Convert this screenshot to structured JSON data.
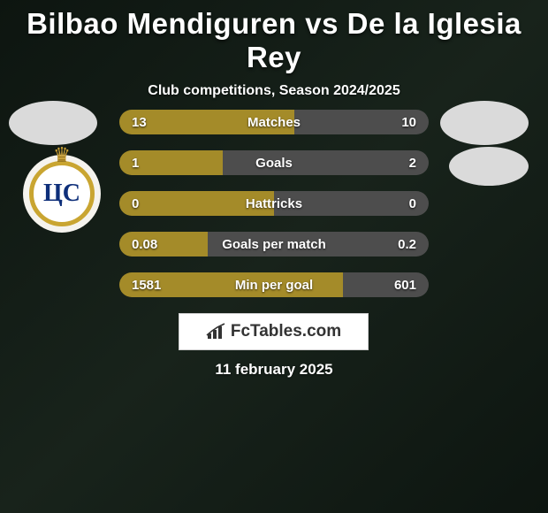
{
  "title": "Bilbao Mendiguren vs De la Iglesia Rey",
  "subtitle": "Club competitions, Season 2024/2025",
  "date": "11 february 2025",
  "brand": "FcTables.com",
  "colors": {
    "left": "#a48b29",
    "right": "#4d4d4d",
    "text": "#ffffff"
  },
  "stats": [
    {
      "label": "Matches",
      "left_val": "13",
      "right_val": "10",
      "left_pct": 56.5
    },
    {
      "label": "Goals",
      "left_val": "1",
      "right_val": "2",
      "left_pct": 33.3
    },
    {
      "label": "Hattricks",
      "left_val": "0",
      "right_val": "0",
      "left_pct": 50.0
    },
    {
      "label": "Goals per match",
      "left_val": "0.08",
      "right_val": "0.2",
      "left_pct": 28.5
    },
    {
      "label": "Min per goal",
      "left_val": "1581",
      "right_val": "601",
      "left_pct": 72.4
    }
  ]
}
